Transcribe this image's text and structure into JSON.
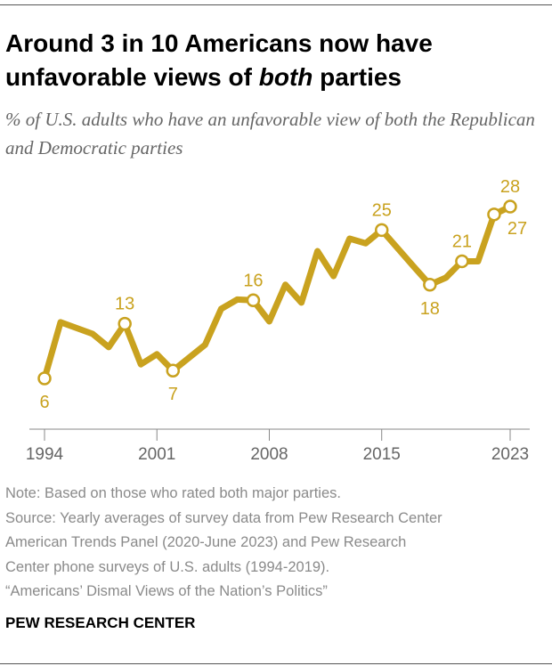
{
  "title_parts": [
    "Around 3 in 10 Americans now have",
    "unfavorable views of ",
    "both",
    " parties"
  ],
  "subtitle": "% of U.S. adults who have an unfavorable view of both the Republican and Democratic parties",
  "chart_data": {
    "type": "line",
    "title": "Around 3 in 10 Americans now have unfavorable views of both parties",
    "subtitle": "% of U.S. adults who have an unfavorable view of both the Republican and Democratic parties",
    "xlabel": "",
    "ylabel": "",
    "x_ticks": [
      "1994",
      "2001",
      "2008",
      "2015",
      "2023"
    ],
    "xlim": [
      1994,
      2023
    ],
    "ylim": [
      0,
      30
    ],
    "grid": false,
    "line_color": "#c9a21f",
    "points": [
      {
        "x": 1994,
        "y": 6,
        "label": "6",
        "label_pos": "below"
      },
      {
        "x": 1995,
        "y": 13.2
      },
      {
        "x": 1997,
        "y": 11.7
      },
      {
        "x": 1998,
        "y": 10
      },
      {
        "x": 1999,
        "y": 13,
        "label": "13",
        "label_pos": "above"
      },
      {
        "x": 2000,
        "y": 7.8
      },
      {
        "x": 2001,
        "y": 9.1
      },
      {
        "x": 2002,
        "y": 7,
        "label": "7",
        "label_pos": "below"
      },
      {
        "x": 2004,
        "y": 10.3
      },
      {
        "x": 2005,
        "y": 14.9
      },
      {
        "x": 2006,
        "y": 16.1
      },
      {
        "x": 2007,
        "y": 16,
        "label": "16",
        "label_pos": "above"
      },
      {
        "x": 2008,
        "y": 13.3
      },
      {
        "x": 2009,
        "y": 18
      },
      {
        "x": 2010,
        "y": 15.7
      },
      {
        "x": 2011,
        "y": 22.3
      },
      {
        "x": 2012,
        "y": 19.1
      },
      {
        "x": 2013,
        "y": 23.9
      },
      {
        "x": 2014,
        "y": 23.3
      },
      {
        "x": 2015,
        "y": 25,
        "label": "25",
        "label_pos": "above"
      },
      {
        "x": 2017,
        "y": 20.3
      },
      {
        "x": 2018,
        "y": 18,
        "label": "18",
        "label_pos": "below"
      },
      {
        "x": 2019,
        "y": 18.9
      },
      {
        "x": 2020,
        "y": 21,
        "label": "21",
        "label_pos": "above"
      },
      {
        "x": 2021,
        "y": 21
      },
      {
        "x": 2022,
        "y": 27,
        "label": "27",
        "label_pos": "below-right"
      },
      {
        "x": 2023,
        "y": 28,
        "label": "28",
        "label_pos": "above"
      }
    ]
  },
  "notes": [
    "Note: Based on those who rated both major parties.",
    "Source: Yearly averages of survey data from Pew Research Center",
    "American Trends Panel (2020-June 2023) and Pew Research",
    "Center phone surveys of U.S. adults (1994-2019).",
    "“Americans’ Dismal Views of the Nation’s Politics”"
  ],
  "brand": "PEW RESEARCH CENTER",
  "colors": {
    "line": "#c9a21f",
    "label": "#c9a21f",
    "axis": "#777777",
    "note": "#8a8a8a"
  }
}
